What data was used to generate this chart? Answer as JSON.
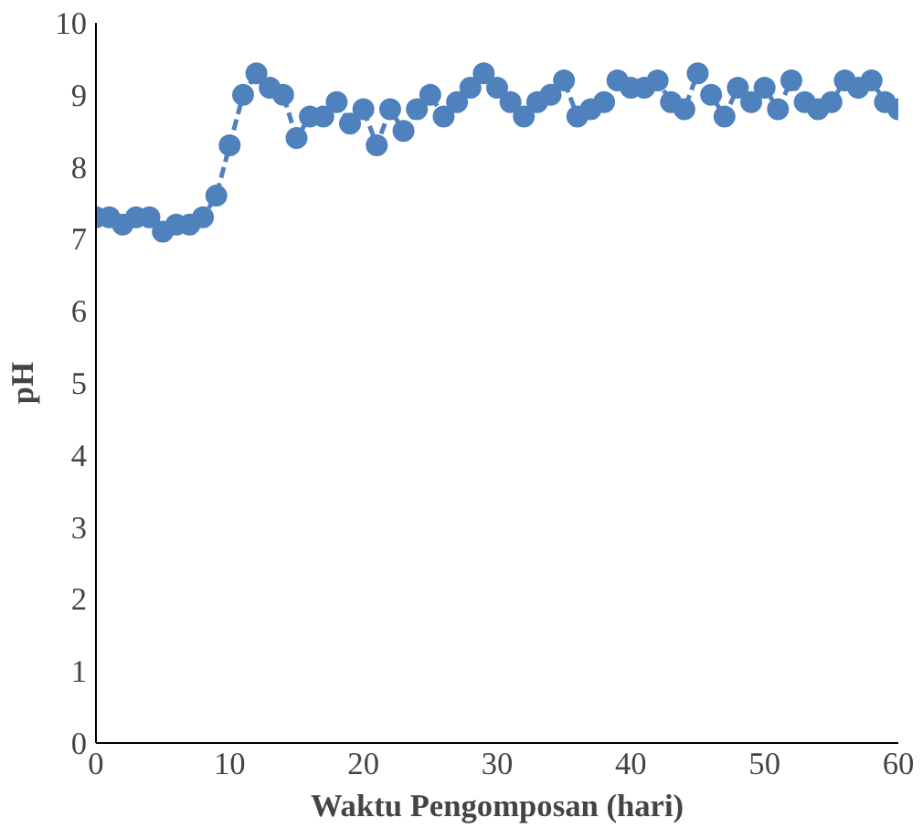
{
  "chart_data": {
    "type": "line",
    "xlabel": "Waktu Pengomposan (hari)",
    "ylabel": "pH",
    "x": [
      0,
      1,
      2,
      3,
      4,
      5,
      6,
      7,
      8,
      9,
      10,
      11,
      12,
      13,
      14,
      15,
      16,
      17,
      18,
      19,
      20,
      21,
      22,
      23,
      24,
      25,
      26,
      27,
      28,
      29,
      30,
      31,
      32,
      33,
      34,
      35,
      36,
      37,
      38,
      39,
      40,
      41,
      42,
      43,
      44,
      45,
      46,
      47,
      48,
      49,
      50,
      51,
      52,
      53,
      54,
      55,
      56,
      57,
      58,
      59,
      60
    ],
    "series": [
      {
        "color": "#4f81bd",
        "values": [
          7.3,
          7.3,
          7.2,
          7.3,
          7.3,
          7.1,
          7.2,
          7.2,
          7.3,
          7.6,
          8.3,
          9.0,
          9.3,
          9.1,
          9.0,
          8.4,
          8.7,
          8.7,
          8.9,
          8.6,
          8.8,
          8.3,
          8.8,
          8.5,
          8.8,
          9.0,
          8.7,
          8.9,
          9.1,
          9.3,
          9.1,
          8.9,
          8.7,
          8.9,
          9.0,
          9.2,
          8.7,
          8.8,
          8.9,
          9.2,
          9.1,
          9.1,
          9.2,
          8.9,
          8.8,
          9.3,
          9.0,
          8.7,
          9.1,
          8.9,
          9.1,
          8.8,
          9.2,
          8.9,
          8.8,
          8.9,
          9.2,
          9.1,
          9.2,
          8.9,
          8.8
        ]
      }
    ],
    "xlim": [
      0,
      60
    ],
    "xticks": [
      0,
      10,
      20,
      30,
      40,
      50,
      60
    ],
    "ylim": [
      0,
      10
    ],
    "yticks": [
      0,
      1,
      2,
      3,
      4,
      5,
      6,
      7,
      8,
      9,
      10
    ],
    "grid": false,
    "marker": "circle",
    "line_style": "dashed"
  }
}
